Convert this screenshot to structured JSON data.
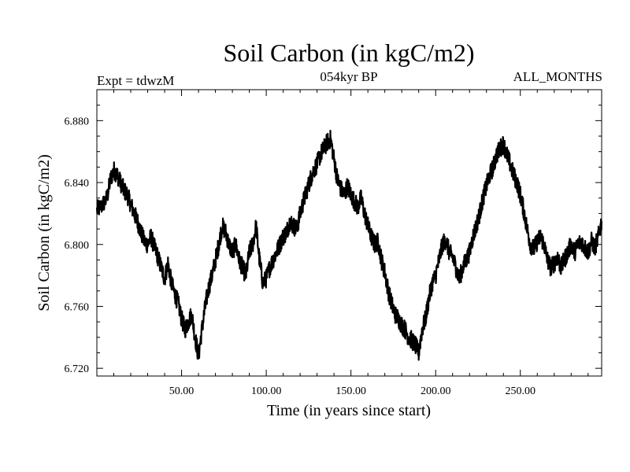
{
  "chart_data": {
    "type": "line",
    "title": "Soil Carbon (in kgC/m2)",
    "subtitle_left": "Expt = tdwzM",
    "subtitle_center": "054kyr BP",
    "subtitle_right": "ALL_MONTHS",
    "xlabel": "Time (in years since start)",
    "ylabel": "Soil Carbon (in kgC/m2)",
    "xlim": [
      0,
      298
    ],
    "ylim": [
      6.715,
      6.9
    ],
    "x_ticks": [
      50,
      100,
      150,
      200,
      250
    ],
    "x_tick_labels": [
      "50.00",
      "100.00",
      "150.00",
      "200.00",
      "250.00"
    ],
    "y_ticks": [
      6.72,
      6.76,
      6.8,
      6.84,
      6.88
    ],
    "y_tick_labels": [
      "6.720",
      "6.760",
      "6.800",
      "6.840",
      "6.880"
    ],
    "grid": false,
    "line_color": "#000000",
    "series": [
      {
        "x": [
          0,
          3,
          6,
          8,
          10,
          12,
          14,
          16,
          18,
          20,
          22,
          24,
          26,
          28,
          30,
          32,
          34,
          36,
          38,
          40,
          42,
          44,
          46,
          48,
          50,
          52,
          54,
          56,
          58,
          60,
          62,
          64,
          66,
          68,
          70,
          72,
          74,
          76,
          78,
          80,
          82,
          84,
          86,
          88,
          90,
          92,
          94,
          96,
          98,
          100,
          102,
          104,
          106,
          108,
          110,
          112,
          114,
          116,
          118,
          120,
          122,
          124,
          126,
          128,
          130,
          132,
          134,
          136,
          138,
          140,
          142,
          144,
          146,
          148,
          150,
          152,
          154,
          156,
          158,
          160,
          162,
          164,
          166,
          168,
          170,
          172,
          174,
          176,
          178,
          180,
          182,
          184,
          186,
          188,
          190,
          192,
          194,
          196,
          198,
          200,
          202,
          204,
          206,
          208,
          210,
          212,
          214,
          216,
          218,
          220,
          222,
          224,
          226,
          228,
          230,
          232,
          234,
          236,
          238,
          240,
          242,
          244,
          246,
          248,
          250,
          252,
          254,
          256,
          258,
          260,
          262,
          264,
          266,
          268,
          270,
          272,
          274,
          276,
          278,
          280,
          282,
          284,
          286,
          288,
          290,
          292,
          294,
          296,
          298
        ],
        "y": [
          6.822,
          6.825,
          6.83,
          6.842,
          6.848,
          6.845,
          6.84,
          6.835,
          6.832,
          6.826,
          6.82,
          6.815,
          6.808,
          6.802,
          6.8,
          6.805,
          6.798,
          6.792,
          6.785,
          6.778,
          6.788,
          6.775,
          6.768,
          6.762,
          6.752,
          6.745,
          6.75,
          6.755,
          6.74,
          6.728,
          6.745,
          6.76,
          6.772,
          6.78,
          6.79,
          6.8,
          6.812,
          6.808,
          6.8,
          6.795,
          6.8,
          6.79,
          6.785,
          6.78,
          6.795,
          6.8,
          6.812,
          6.79,
          6.775,
          6.778,
          6.785,
          6.79,
          6.795,
          6.8,
          6.805,
          6.808,
          6.815,
          6.812,
          6.81,
          6.82,
          6.828,
          6.835,
          6.842,
          6.848,
          6.852,
          6.858,
          6.862,
          6.866,
          6.868,
          6.855,
          6.842,
          6.836,
          6.832,
          6.838,
          6.832,
          6.828,
          6.824,
          6.83,
          6.82,
          6.812,
          6.805,
          6.8,
          6.802,
          6.79,
          6.782,
          6.77,
          6.762,
          6.755,
          6.752,
          6.748,
          6.745,
          6.74,
          6.738,
          6.735,
          6.73,
          6.745,
          6.752,
          6.765,
          6.775,
          6.78,
          6.79,
          6.8,
          6.803,
          6.795,
          6.792,
          6.785,
          6.778,
          6.785,
          6.79,
          6.795,
          6.805,
          6.812,
          6.82,
          6.83,
          6.838,
          6.845,
          6.85,
          6.858,
          6.862,
          6.865,
          6.858,
          6.852,
          6.845,
          6.84,
          6.832,
          6.822,
          6.81,
          6.8,
          6.797,
          6.802,
          6.805,
          6.8,
          6.79,
          6.785,
          6.788,
          6.792,
          6.785,
          6.79,
          6.795,
          6.8,
          6.795,
          6.8,
          6.802,
          6.798,
          6.795,
          6.802,
          6.798,
          6.805,
          6.815
        ]
      }
    ]
  }
}
